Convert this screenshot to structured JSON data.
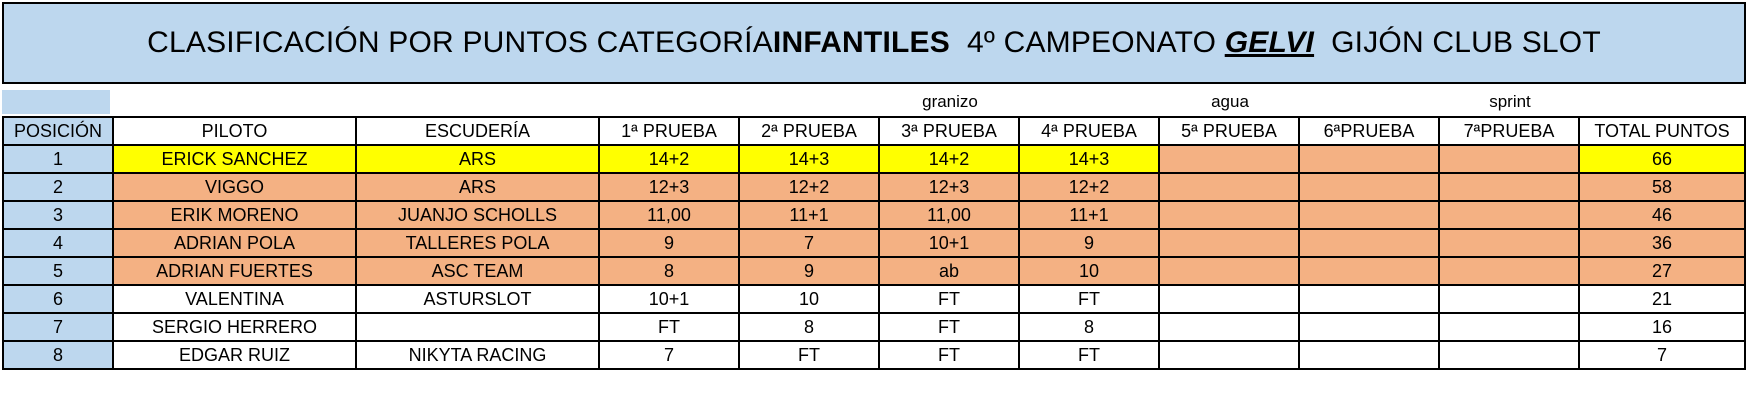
{
  "title": {
    "part1": "CLASIFICACIÓN POR PUNTOS CATEGORÍA ",
    "category": "INFANTILES",
    "part2": "  4º CAMPEONATO ",
    "brand": "GELVI",
    "part3": "  GIJÓN CLUB SLOT"
  },
  "notes": {
    "race3": "granizo",
    "race5": "agua",
    "race7": "sprint"
  },
  "headers": {
    "position": "POSICIÓN",
    "pilot": "PILOTO",
    "team": "ESCUDERÍA",
    "race1": "1ª PRUEBA",
    "race2": "2ª PRUEBA",
    "race3": "3ª PRUEBA",
    "race4": "4ª PRUEBA",
    "race5": "5ª PRUEBA",
    "race6": "6ªPRUEBA",
    "race7": "7ªPRUEBA",
    "total": "TOTAL PUNTOS"
  },
  "rows": [
    {
      "pos": "1",
      "pilot": "ERICK SANCHEZ",
      "team": "ARS",
      "r1": "14+2",
      "r2": "14+3",
      "r3": "14+2",
      "r4": "14+3",
      "r5": "",
      "r6": "",
      "r7": "",
      "total": "66"
    },
    {
      "pos": "2",
      "pilot": "VIGGO",
      "team": "ARS",
      "r1": "12+3",
      "r2": "12+2",
      "r3": "12+3",
      "r4": "12+2",
      "r5": "",
      "r6": "",
      "r7": "",
      "total": "58"
    },
    {
      "pos": "3",
      "pilot": "ERIK MORENO",
      "team": "JUANJO SCHOLLS",
      "r1": "11,00",
      "r2": "11+1",
      "r3": "11,00",
      "r4": "11+1",
      "r5": "",
      "r6": "",
      "r7": "",
      "total": "46"
    },
    {
      "pos": "4",
      "pilot": "ADRIAN POLA",
      "team": "TALLERES POLA",
      "r1": "9",
      "r2": "7",
      "r3": "10+1",
      "r4": "9",
      "r5": "",
      "r6": "",
      "r7": "",
      "total": "36"
    },
    {
      "pos": "5",
      "pilot": "ADRIAN FUERTES",
      "team": "ASC TEAM",
      "r1": "8",
      "r2": "9",
      "r3": "ab",
      "r4": "10",
      "r5": "",
      "r6": "",
      "r7": "",
      "total": "27"
    },
    {
      "pos": "6",
      "pilot": "VALENTINA",
      "team": "ASTURSLOT",
      "r1": "10+1",
      "r2": "10",
      "r3": "FT",
      "r4": "FT",
      "r5": "",
      "r6": "",
      "r7": "",
      "total": "21"
    },
    {
      "pos": "7",
      "pilot": "SERGIO HERRERO",
      "team": "",
      "r1": "FT",
      "r2": "8",
      "r3": "FT",
      "r4": "8",
      "r5": "",
      "r6": "",
      "r7": "",
      "total": "16"
    },
    {
      "pos": "8",
      "pilot": "EDGAR RUIZ",
      "team": "NIKYTA RACING",
      "r1": "7",
      "r2": "FT",
      "r3": "FT",
      "r4": "FT",
      "r5": "",
      "r6": "",
      "r7": "",
      "total": "7"
    }
  ],
  "colors": {
    "header_blue": "#bdd7ee",
    "leader_yellow": "#ffff00",
    "top5_salmon": "#f4b183"
  }
}
